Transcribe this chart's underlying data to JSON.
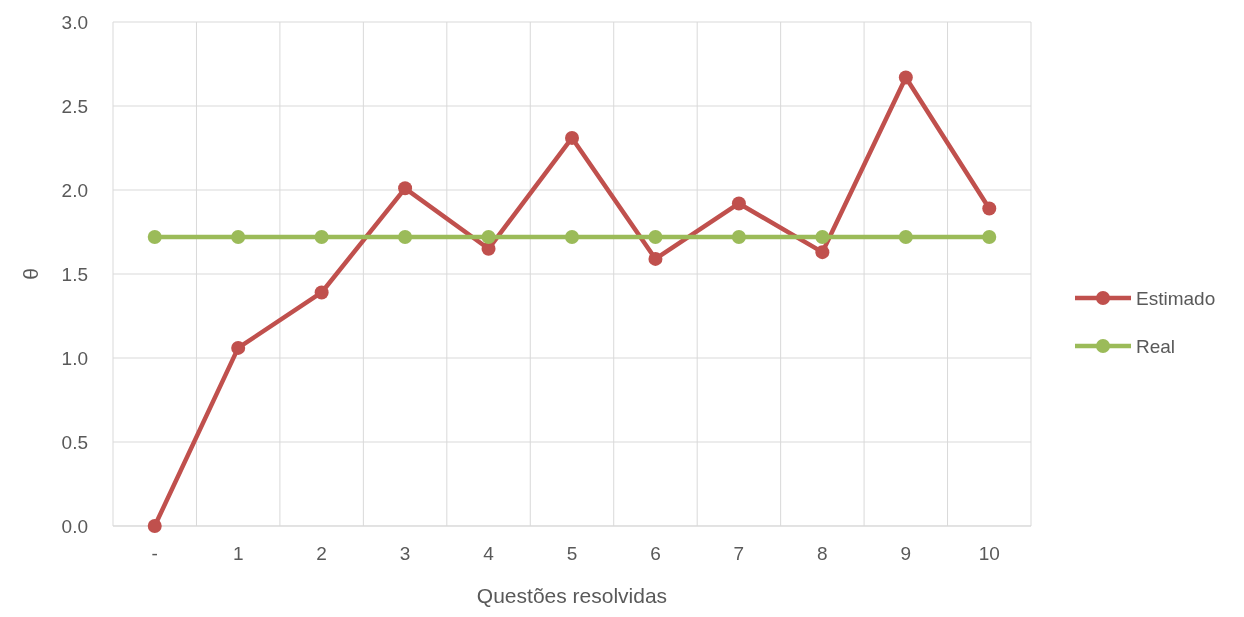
{
  "chart_data": {
    "type": "line",
    "xlabel": "Questões resolvidas",
    "ylabel": "θ",
    "categories": [
      "-",
      "1",
      "2",
      "3",
      "4",
      "5",
      "6",
      "7",
      "8",
      "9",
      "10"
    ],
    "series": [
      {
        "name": "Estimado",
        "color": "#c0504d",
        "values": [
          0.0,
          1.06,
          1.39,
          2.01,
          1.65,
          2.31,
          1.59,
          1.92,
          1.63,
          2.67,
          1.89
        ]
      },
      {
        "name": "Real",
        "color": "#9bbb59",
        "values": [
          1.72,
          1.72,
          1.72,
          1.72,
          1.72,
          1.72,
          1.72,
          1.72,
          1.72,
          1.72,
          1.72
        ]
      }
    ],
    "ylim": [
      0,
      3
    ],
    "yticks": [
      {
        "value": 0,
        "label": "0.0"
      },
      {
        "value": 0.5,
        "label": "0.5"
      },
      {
        "value": 1,
        "label": "1.0"
      },
      {
        "value": 1.5,
        "label": "1.5"
      },
      {
        "value": 2,
        "label": "2.0"
      },
      {
        "value": 2.5,
        "label": "2.5"
      },
      {
        "value": 3,
        "label": "3.0"
      }
    ],
    "grid": true,
    "legend": "right",
    "marker": "circle",
    "line_style": "solid"
  }
}
